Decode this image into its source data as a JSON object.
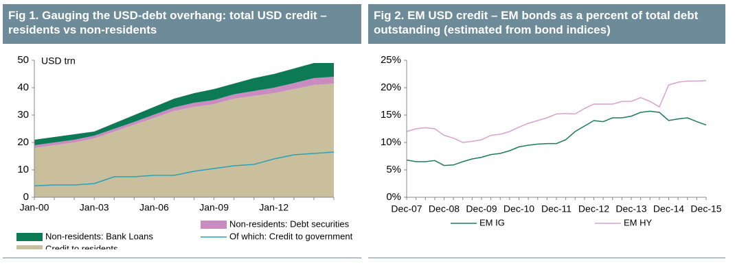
{
  "chart_data": [
    {
      "type": "area",
      "title": "Fig 1. Gauging the USD-debt overhang: total USD credit – residents vs non-residents",
      "stacked": true,
      "y_unit": "USD trn",
      "categories": [
        "Jan-00",
        null,
        null,
        "Jan-03",
        null,
        null,
        "Jan-06",
        null,
        null,
        "Jan-09",
        null,
        null,
        "Jan-12",
        null,
        null,
        null
      ],
      "series": [
        {
          "name": "Credit to residents",
          "color": "#c9bf9c",
          "values": [
            18,
            19,
            20,
            21.5,
            24,
            26.5,
            29,
            31.5,
            33,
            34,
            36,
            37,
            38,
            39.5,
            41,
            41.5
          ]
        },
        {
          "name": "Non-residents: Debt securities",
          "color": "#c98cc0",
          "values": [
            1,
            1,
            1,
            1,
            1,
            1,
            1.2,
            1.3,
            1.5,
            1.5,
            1.6,
            1.8,
            2,
            2.2,
            2.5,
            2.5
          ]
        },
        {
          "name": "Non-residents: Bank Loans",
          "color": "#0b7a55",
          "values": [
            2,
            2,
            2,
            1.5,
            2,
            2.5,
            2.8,
            3.2,
            3.5,
            4,
            3.9,
            4.7,
            5,
            5.3,
            5.5,
            5
          ]
        },
        {
          "name": "Of which: Credit to government",
          "color": "#2aa0b6",
          "type": "line",
          "values": [
            4.2,
            4.5,
            4.5,
            5,
            7.5,
            7.5,
            8,
            8,
            9.5,
            10.5,
            11.5,
            12,
            14,
            15.5,
            16,
            16.5
          ]
        }
      ],
      "ylim": [
        0,
        50
      ],
      "yticks": [
        0,
        10,
        20,
        30,
        40,
        50
      ]
    },
    {
      "type": "line",
      "title": "Fig 2. EM USD credit – EM bonds as a percent of total debt outstanding (estimated from bond indices)",
      "categories": [
        "Dec-07",
        null,
        null,
        null,
        "Dec-08",
        null,
        null,
        null,
        "Dec-09",
        null,
        null,
        null,
        "Dec-10",
        null,
        null,
        null,
        "Dec-11",
        null,
        null,
        null,
        "Dec-12",
        null,
        null,
        null,
        "Dec-13",
        null,
        null,
        null,
        "Dec-14",
        null,
        null,
        null,
        "Dec-15"
      ],
      "series": [
        {
          "name": "EM IG",
          "color": "#1f7a5a",
          "values": [
            6.8,
            6.5,
            6.5,
            6.7,
            5.8,
            5.9,
            6.5,
            7.0,
            7.3,
            7.8,
            8.0,
            8.5,
            9.2,
            9.5,
            9.7,
            9.8,
            9.8,
            10.5,
            12,
            13,
            14.0,
            13.8,
            14.5,
            14.5,
            14.8,
            15.5,
            15.7,
            15.5,
            14.0,
            14.3,
            14.5,
            13.8,
            13.2
          ]
        },
        {
          "name": "EM HY",
          "color": "#d9a0d0",
          "values": [
            12,
            12.5,
            12.7,
            12.5,
            11.3,
            10.8,
            10,
            10.2,
            10.5,
            11.3,
            11.5,
            12,
            12.8,
            13.5,
            14,
            14.5,
            15.2,
            15.3,
            15.2,
            16.2,
            17.0,
            17.0,
            17.0,
            17.5,
            17.5,
            18.2,
            17.5,
            16.5,
            20.5,
            21.0,
            21.2,
            21.2,
            21.3
          ]
        }
      ],
      "ylim": [
        0,
        25
      ],
      "yticks": [
        {
          "value": 0,
          "label": "0%"
        },
        {
          "value": 5,
          "label": "5%"
        },
        {
          "value": 10,
          "label": "10%"
        },
        {
          "value": 15,
          "label": "15%"
        },
        {
          "value": 20,
          "label": "20%"
        },
        {
          "value": 25,
          "label": "25%"
        }
      ]
    }
  ]
}
